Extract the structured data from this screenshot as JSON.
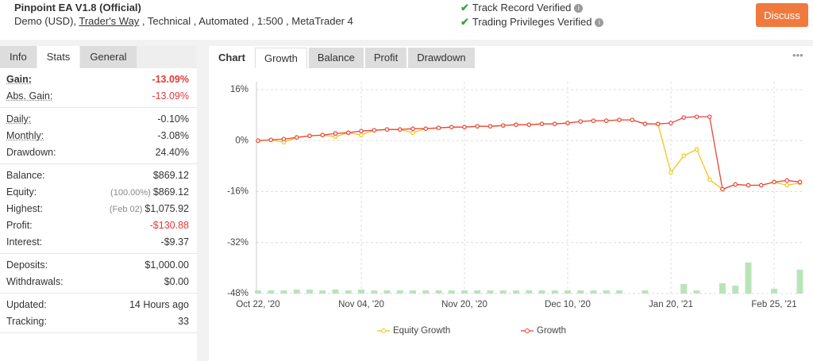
{
  "header": {
    "title": "Pinpoint EA V1.8 (Official)",
    "account_parts": [
      "Demo (USD), ",
      "Trader's Way",
      " , Technical , Automated , 1:500 , MetaTrader 4"
    ],
    "verifications": [
      "Track Record Verified",
      "Trading Privileges Verified"
    ],
    "button": "Discuss"
  },
  "left_tabs": {
    "items": [
      "Info",
      "Stats",
      "General"
    ],
    "active": 1
  },
  "stats": {
    "groups": [
      [
        {
          "label": "Gain:",
          "value": "-13.09%",
          "color": "#e53935",
          "bold": true,
          "underline": true
        },
        {
          "label": "Abs. Gain:",
          "value": "-13.09%",
          "color": "#e53935",
          "underline": true
        }
      ],
      [
        {
          "label": "Daily:",
          "value": "-0.10%",
          "underline": true
        },
        {
          "label": "Monthly:",
          "value": "-3.08%",
          "underline": true
        },
        {
          "label": "Drawdown:",
          "value": "24.40%"
        }
      ],
      [
        {
          "label": "Balance:",
          "value": "$869.12"
        },
        {
          "label": "Equity:",
          "value": "$869.12",
          "note": "(100.00%)"
        },
        {
          "label": "Highest:",
          "value": "$1,075.92",
          "note": "(Feb 02)"
        },
        {
          "label": "Profit:",
          "value": "-$130.88",
          "color": "#e53935"
        },
        {
          "label": "Interest:",
          "value": "-$9.37"
        }
      ],
      [
        {
          "label": "Deposits:",
          "value": "$1,000.00"
        },
        {
          "label": "Withdrawals:",
          "value": "$0.00"
        }
      ],
      [
        {
          "label": "Updated:",
          "value": "14 Hours ago"
        },
        {
          "label": "Tracking:",
          "value": "33"
        }
      ]
    ]
  },
  "chart_tabs": {
    "title": "Chart",
    "items": [
      "Growth",
      "Balance",
      "Profit",
      "Drawdown"
    ],
    "active": 0,
    "menu": "•••"
  },
  "chart_data": {
    "type": "line",
    "categories": [
      "Oct 22, '20",
      null,
      null,
      null,
      null,
      null,
      null,
      null,
      "Nov 04, '20",
      null,
      null,
      null,
      null,
      null,
      null,
      null,
      "Nov 20, '20",
      null,
      null,
      null,
      null,
      null,
      null,
      null,
      "Dec 10, '20",
      null,
      null,
      null,
      null,
      null,
      null,
      null,
      "Jan 20, '21",
      null,
      null,
      null,
      null,
      null,
      null,
      null,
      "Feb 25, '21",
      null,
      null
    ],
    "ylim": [
      -48,
      16
    ],
    "yticks": [
      {
        "value": 16,
        "label": "16%"
      },
      {
        "value": 0,
        "label": "0%"
      },
      {
        "value": -16,
        "label": "-16%"
      },
      {
        "value": -32,
        "label": "-32%"
      },
      {
        "value": -48,
        "label": "-48%"
      }
    ],
    "y2lim": [
      0,
      64
    ],
    "grid": true,
    "series": [
      {
        "name": "Equity Growth",
        "color": "#f5c518",
        "values": [
          0,
          0.25,
          -0.5,
          1,
          1.5,
          1.75,
          1.25,
          2.5,
          1.75,
          3.25,
          3.5,
          3.5,
          2.5,
          3.75,
          4,
          4.25,
          4.25,
          4.5,
          4.5,
          4.75,
          5,
          5,
          5.25,
          5.25,
          5.5,
          6,
          6.25,
          6.25,
          6.5,
          6.5,
          5.25,
          5.25,
          -10,
          -4.75,
          -2.75,
          -12.25,
          -15.25,
          -13.75,
          -14,
          -14,
          -13,
          -14,
          -13.25
        ]
      },
      {
        "name": "Growth",
        "color": "#e8453c",
        "values": [
          0,
          0.25,
          0.5,
          1,
          1.5,
          1.75,
          2.25,
          2.5,
          3,
          3.25,
          3.5,
          3.5,
          3.75,
          3.75,
          4,
          4.25,
          4.25,
          4.5,
          4.5,
          4.75,
          5,
          5,
          5.25,
          5.25,
          5.5,
          6,
          6.25,
          6.25,
          6.5,
          6.5,
          5.25,
          5.25,
          5.5,
          7.25,
          7.5,
          7.5,
          -15.25,
          -13.75,
          -14,
          -14,
          -13,
          -12.5,
          -13
        ]
      },
      {
        "type": "bar",
        "axis": "y2",
        "color": "#b9e4b9",
        "values": [
          1,
          1,
          1,
          1.25,
          1.25,
          1,
          1.25,
          1,
          1.25,
          1,
          1,
          1,
          1,
          1,
          1,
          1,
          1,
          1,
          1,
          1,
          1,
          1,
          1,
          1,
          1,
          1,
          1,
          1,
          1,
          0,
          1,
          0,
          0,
          3,
          1,
          0,
          3.25,
          2.5,
          9.75,
          0,
          1.5,
          0,
          7.5
        ]
      }
    ]
  }
}
